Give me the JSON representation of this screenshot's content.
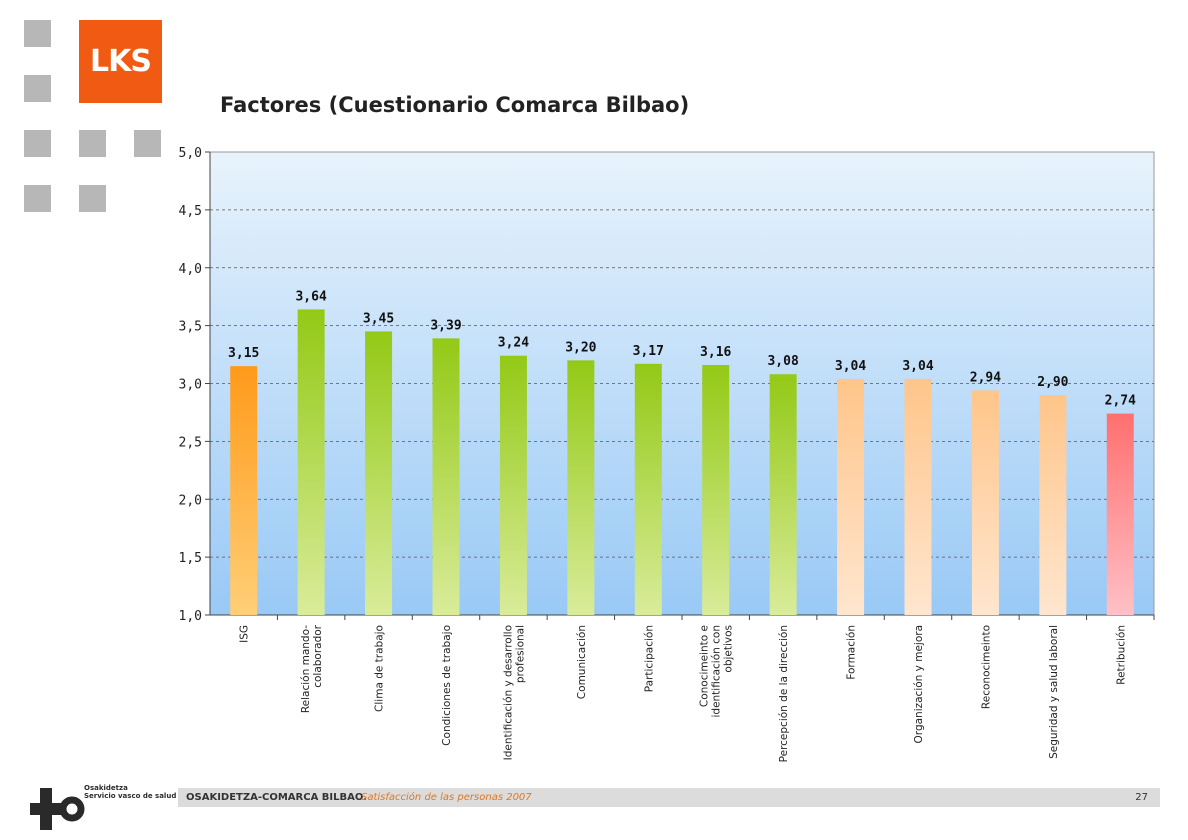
{
  "logo": {
    "text": "LKS"
  },
  "chart_data": {
    "type": "bar",
    "title": "Factores (Cuestionario Comarca Bilbao)",
    "xlabel": "",
    "ylabel": "",
    "ylim": [
      1.0,
      5.0
    ],
    "yticks": [
      "1,0",
      "1,5",
      "2,0",
      "2,5",
      "3,0",
      "3,5",
      "4,0",
      "4,5",
      "5,0"
    ],
    "grid": true,
    "categories": [
      "ISG",
      "Relación mando-colaborador",
      "Clima de trabajo",
      "Condiciones de trabajo",
      "Identificación y desarrollo profesional",
      "Comunicación",
      "Participación",
      "Conocimeinto e identificación con objetivos",
      "Percepción de la dirección",
      "Formación",
      "Organización y mejora",
      "Reconocimeinto",
      "Seguridad y salud laboral",
      "Retribución"
    ],
    "category_lines": [
      [
        "ISG"
      ],
      [
        "Relación mando-",
        "colaborador"
      ],
      [
        "Clima de trabajo"
      ],
      [
        "Condiciones de trabajo"
      ],
      [
        "Identificación y desarrollo",
        "profesional"
      ],
      [
        "Comunicación"
      ],
      [
        "Participación"
      ],
      [
        "Conocimeinto e",
        "identificación con",
        "objetivos"
      ],
      [
        "Percepción de la dirección"
      ],
      [
        "Formación"
      ],
      [
        "Organización y mejora"
      ],
      [
        "Reconocimeinto"
      ],
      [
        "Seguridad y salud laboral"
      ],
      [
        "Retribución"
      ]
    ],
    "values": [
      3.15,
      3.64,
      3.45,
      3.39,
      3.24,
      3.2,
      3.17,
      3.16,
      3.08,
      3.04,
      3.04,
      2.94,
      2.9,
      2.74
    ],
    "value_labels": [
      "3,15",
      "3,64",
      "3,45",
      "3,39",
      "3,24",
      "3,20",
      "3,17",
      "3,16",
      "3,08",
      "3,04",
      "3,04",
      "2,94",
      "2,90",
      "2,74"
    ],
    "bar_groups": [
      "orange",
      "green",
      "green",
      "green",
      "green",
      "green",
      "green",
      "green",
      "green",
      "peach",
      "peach",
      "peach",
      "peach",
      "red"
    ],
    "colors": {
      "orange": [
        "#ff9a1a",
        "#ffcf77"
      ],
      "green": [
        "#93c916",
        "#d9ec9a"
      ],
      "peach": [
        "#ffc58a",
        "#ffe6cf"
      ],
      "red": [
        "#ff6f6f",
        "#ffc0c6"
      ],
      "plot_bg_top": "#e8f3fc",
      "plot_bg_bottom": "#99c9f6"
    }
  },
  "footer": {
    "org": "OSAKIDETZA-COMARCA BILBAO.",
    "subtitle": "Satisfacción  de las personas  2007",
    "page": "27"
  },
  "brand": {
    "text": "Osakidetza\nServicio vasco de salud"
  }
}
